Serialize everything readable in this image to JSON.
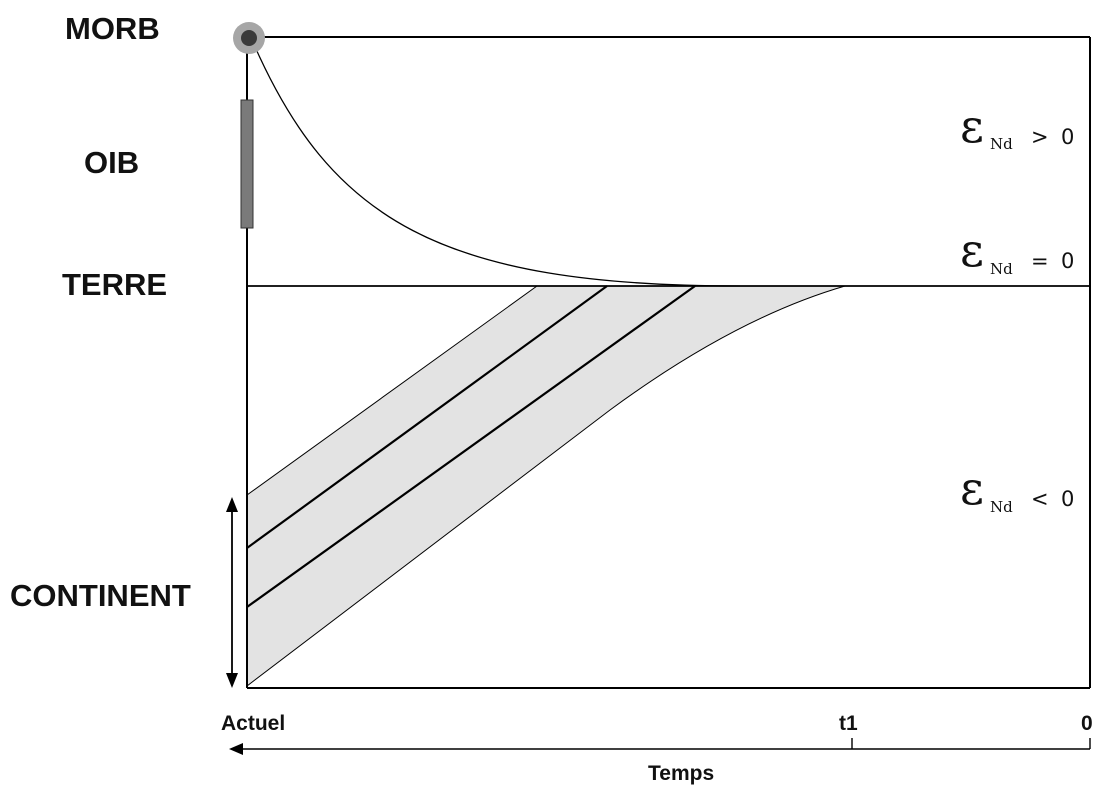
{
  "labels": {
    "morb": "MORB",
    "oib": "OIB",
    "terre": "TERRE",
    "continent": "CONTINENT"
  },
  "epsilon": {
    "symbol": "ε",
    "subscript": "Nd",
    "positive": {
      "op": ">",
      "value": "0"
    },
    "zero": {
      "op": "=",
      "value": "0"
    },
    "negative": {
      "op": "<",
      "value": "0"
    }
  },
  "time_axis": {
    "left_label": "Actuel",
    "t1_label": "t1",
    "right_label": "0",
    "title": "Temps"
  },
  "colors": {
    "band_fill": "#e3e3e3",
    "oib_bar": "#7a7a7a",
    "morb_outer": "#a6a6a6",
    "morb_inner": "#3a3a3a",
    "line": "#000000"
  }
}
